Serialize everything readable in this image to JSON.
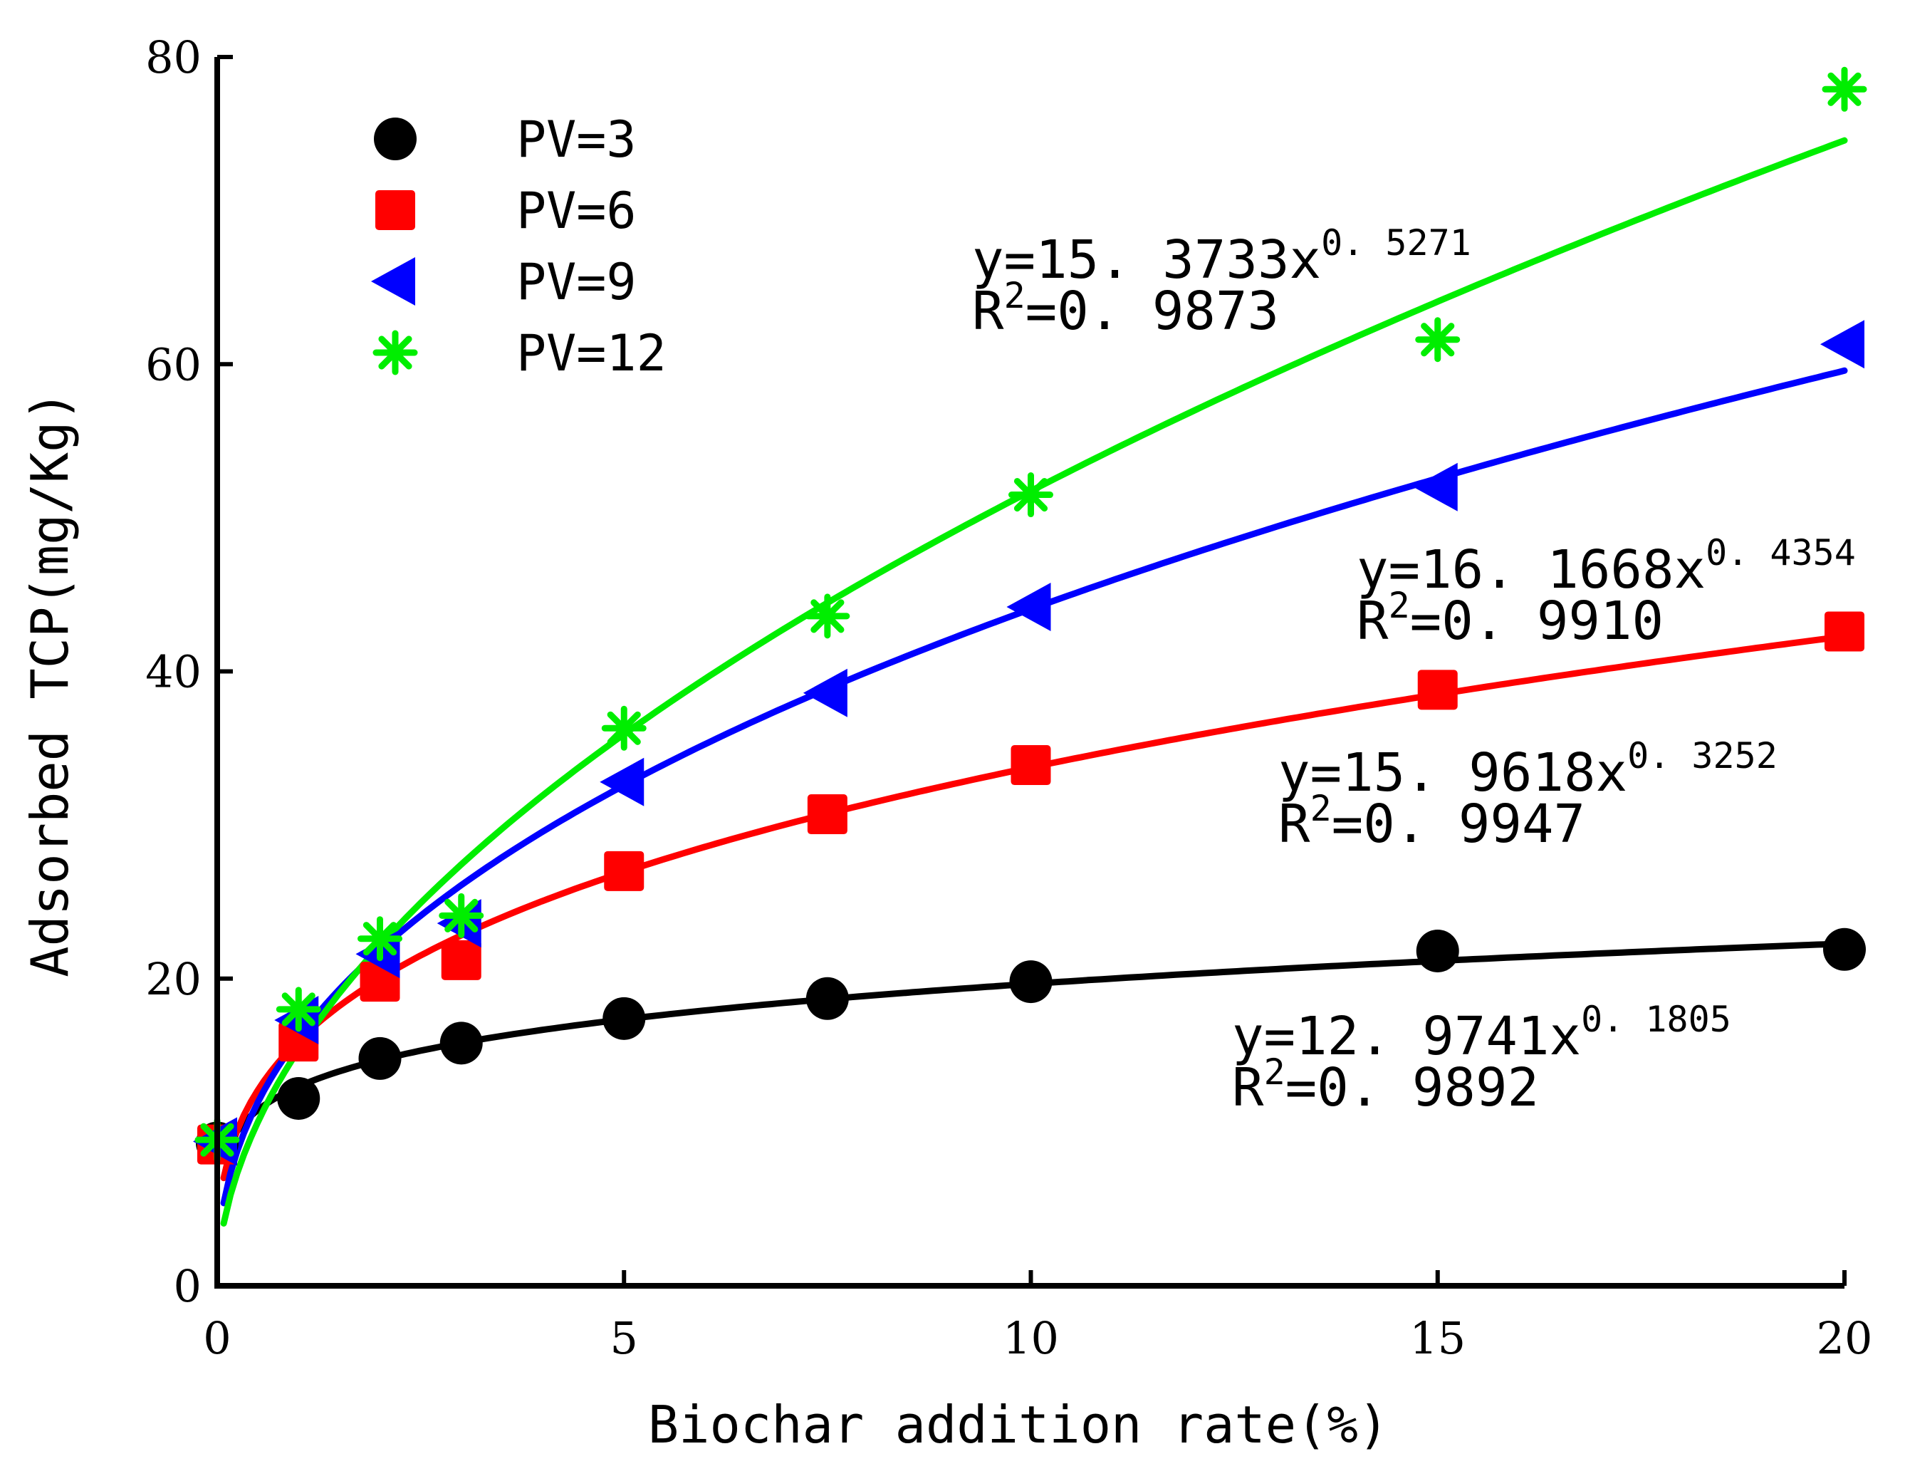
{
  "chart_data": {
    "type": "scatter",
    "title": "",
    "xlabel": "Biochar addition rate(%)",
    "ylabel": "Adsorbed TCP(mg/Kg)",
    "xlim": [
      0,
      20
    ],
    "ylim": [
      0,
      80
    ],
    "xticks": [
      0,
      5,
      10,
      15,
      20
    ],
    "yticks": [
      0,
      20,
      40,
      60,
      80
    ],
    "xtick_labels": [
      "0",
      "5",
      "10",
      "15",
      "20"
    ],
    "ytick_labels": [
      "0",
      "20",
      "40",
      "60",
      "80"
    ],
    "grid": false,
    "legend_position": "top-left",
    "series": [
      {
        "name": "PV=3",
        "color": "#000000",
        "marker": "circle",
        "x": [
          0,
          1,
          2,
          3,
          5,
          7.5,
          10,
          15,
          20
        ],
        "y": [
          9.3,
          12.2,
          14.8,
          15.8,
          17.4,
          18.7,
          19.8,
          21.8,
          21.9
        ],
        "fit": {
          "a": 12.9741,
          "b": 0.1805
        },
        "eq_prefix": "y=12. 9741x",
        "eq_exponent": "0. 1805",
        "r2_prefix": "R",
        "r2_sup": "2",
        "r2_value": "=0. 9892"
      },
      {
        "name": "PV=6",
        "color": "#ff0000",
        "marker": "square",
        "x": [
          0,
          1,
          2,
          3,
          5,
          7.5,
          10,
          15,
          20
        ],
        "y": [
          9.2,
          15.9,
          19.8,
          21.2,
          27.0,
          30.7,
          33.9,
          38.8,
          42.6
        ],
        "fit": {
          "a": 15.9618,
          "b": 0.3252
        },
        "eq_prefix": "y=15. 9618x",
        "eq_exponent": "0. 3252",
        "r2_prefix": "R",
        "r2_sup": "2",
        "r2_value": "=0. 9947"
      },
      {
        "name": "PV=9",
        "color": "#0000ff",
        "marker": "triangle-left",
        "x": [
          0,
          1,
          2,
          3,
          5,
          7.5,
          10,
          15,
          20
        ],
        "y": [
          9.4,
          17.3,
          21.6,
          23.6,
          32.8,
          38.6,
          44.2,
          52.0,
          61.3
        ],
        "fit": {
          "a": 16.1668,
          "b": 0.4354
        },
        "eq_prefix": "y=16. 1668x",
        "eq_exponent": "0. 4354",
        "r2_prefix": "R",
        "r2_sup": "2",
        "r2_value": "=0. 9910"
      },
      {
        "name": "PV=12",
        "color": "#00ee00",
        "marker": "asterisk",
        "x": [
          0,
          1,
          2,
          3,
          5,
          7.5,
          10,
          15,
          20
        ],
        "y": [
          9.5,
          18.0,
          22.6,
          24.1,
          36.3,
          43.6,
          51.5,
          61.6,
          77.9
        ],
        "fit": {
          "a": 15.3733,
          "b": 0.5271
        },
        "eq_prefix": "y=15. 3733x",
        "eq_exponent": "0. 5271",
        "r2_prefix": "R",
        "r2_sup": "2",
        "r2_value": "=0. 9873"
      }
    ]
  }
}
